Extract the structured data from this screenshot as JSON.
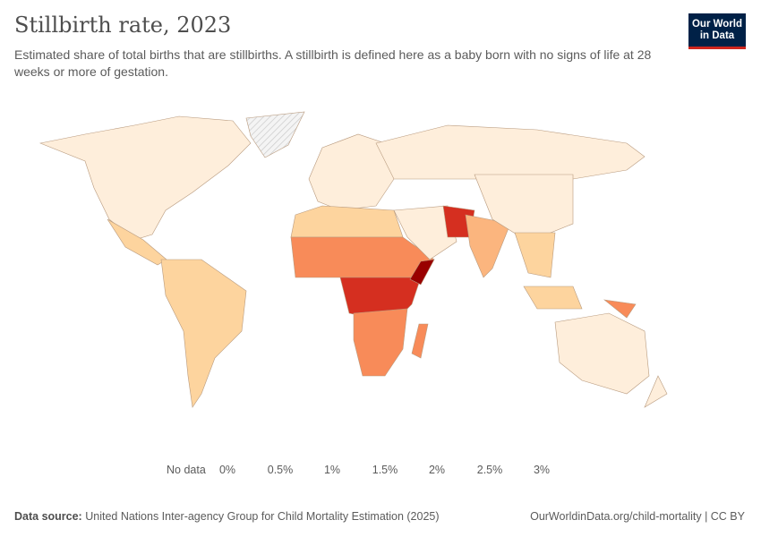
{
  "header": {
    "title": "Stillbirth rate, 2023",
    "subtitle": "Estimated share of total births that are stillbirths. A stillbirth is defined here as a baby born with no signs of life at 28 weeks or more of gestation.",
    "logo_text": "Our World in Data"
  },
  "legend": {
    "no_data_label": "No data",
    "ticks": [
      "0%",
      "0.5%",
      "1%",
      "1.5%",
      "2%",
      "2.5%",
      "3%"
    ],
    "colors": [
      "#feeedb",
      "#fdd49e",
      "#fbb57e",
      "#f88b59",
      "#eb6548",
      "#d52f20",
      "#990000"
    ],
    "no_data_color": "#eeeeee"
  },
  "footer": {
    "source_label": "Data source:",
    "source_text": "United Nations Inter-agency Group for Child Mortality Estimation (2025)",
    "link": "OurWorldinData.org/child-mortality | CC BY"
  },
  "colors": {
    "border": "#b89a7e",
    "logo_bg": "#002147",
    "logo_accent": "#ce261e"
  }
}
